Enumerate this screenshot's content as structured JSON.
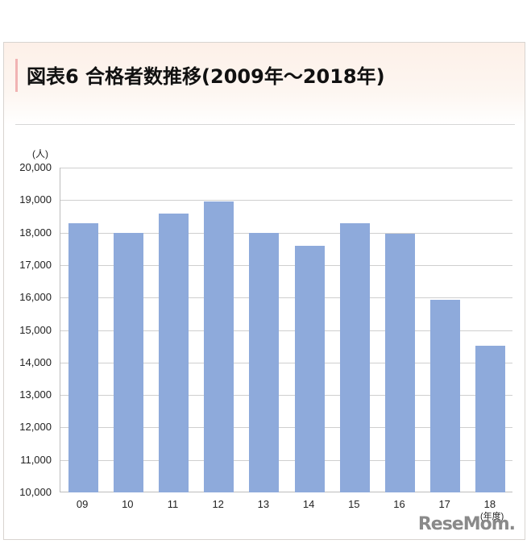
{
  "header": {
    "title": "図表6 合格者数推移(2009年～2018年)"
  },
  "watermark": "ReseMom.",
  "chart_data": {
    "type": "bar",
    "title": "図表6 合格者数推移(2009年～2018年)",
    "xlabel": "(年度)",
    "ylabel": "(人)",
    "categories": [
      "09",
      "10",
      "11",
      "12",
      "13",
      "14",
      "15",
      "16",
      "17",
      "18"
    ],
    "values": [
      18300,
      17980,
      18580,
      18960,
      17980,
      17600,
      18290,
      17970,
      15930,
      14520
    ],
    "ylim": [
      10000,
      20000
    ],
    "yticks": [
      "10,000",
      "11,000",
      "12,000",
      "13,000",
      "14,000",
      "15,000",
      "16,000",
      "17,000",
      "18,000",
      "19,000",
      "20,000"
    ],
    "grid": true,
    "legend": "none",
    "bar_color": "#8eaadb"
  }
}
